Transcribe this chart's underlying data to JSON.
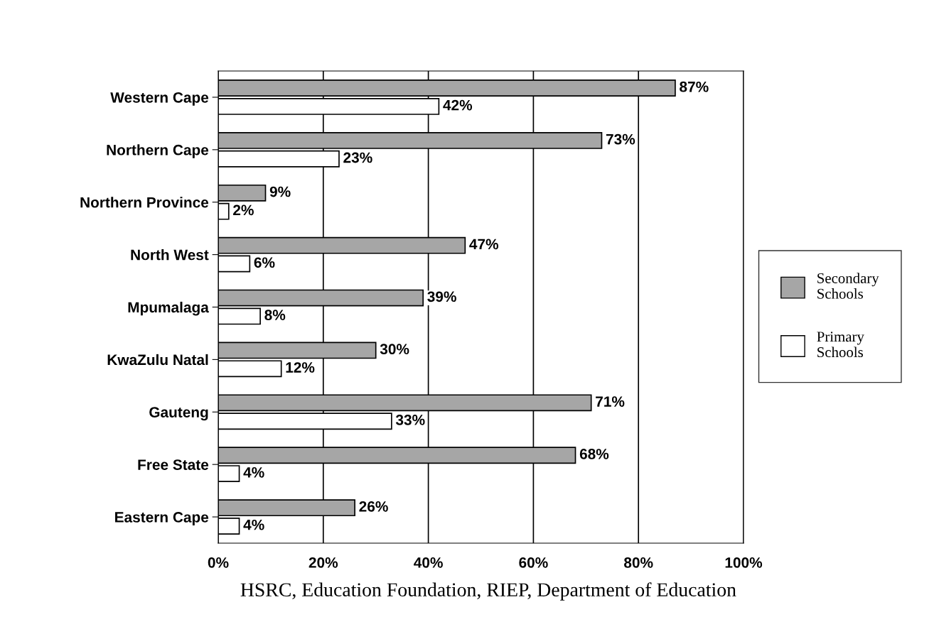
{
  "chart_data": {
    "type": "bar",
    "orientation": "horizontal",
    "categories": [
      "Western Cape",
      "Northern Cape",
      "Northern Province",
      "North West",
      "Mpumalaga",
      "KwaZulu Natal",
      "Gauteng",
      "Free State",
      "Eastern Cape"
    ],
    "series": [
      {
        "name": "Secondary Schools",
        "color": "#a6a6a6",
        "values": [
          87,
          73,
          9,
          47,
          39,
          30,
          71,
          68,
          26
        ],
        "value_labels": [
          "87%",
          "73%",
          "9%",
          "47%",
          "39%",
          "30%",
          "71%",
          "68%",
          "26%"
        ]
      },
      {
        "name": "Primary Schools",
        "color": "#ffffff",
        "values": [
          42,
          23,
          2,
          6,
          8,
          12,
          33,
          4,
          4
        ],
        "value_labels": [
          "42%",
          "23%",
          "2%",
          "6%",
          "8%",
          "12%",
          "33%",
          "4%",
          "4%"
        ]
      }
    ],
    "xlim": [
      0,
      100
    ],
    "xticks": [
      {
        "value": 0,
        "label": "0%"
      },
      {
        "value": 20,
        "label": "20%"
      },
      {
        "value": 40,
        "label": "40%"
      },
      {
        "value": 60,
        "label": "60%"
      },
      {
        "value": 80,
        "label": "80%"
      },
      {
        "value": 100,
        "label": "100%"
      }
    ],
    "grid": "x",
    "legend": "right",
    "annotations": [
      "HSRC, Education Foundation, RIEP, Department of Education"
    ]
  }
}
